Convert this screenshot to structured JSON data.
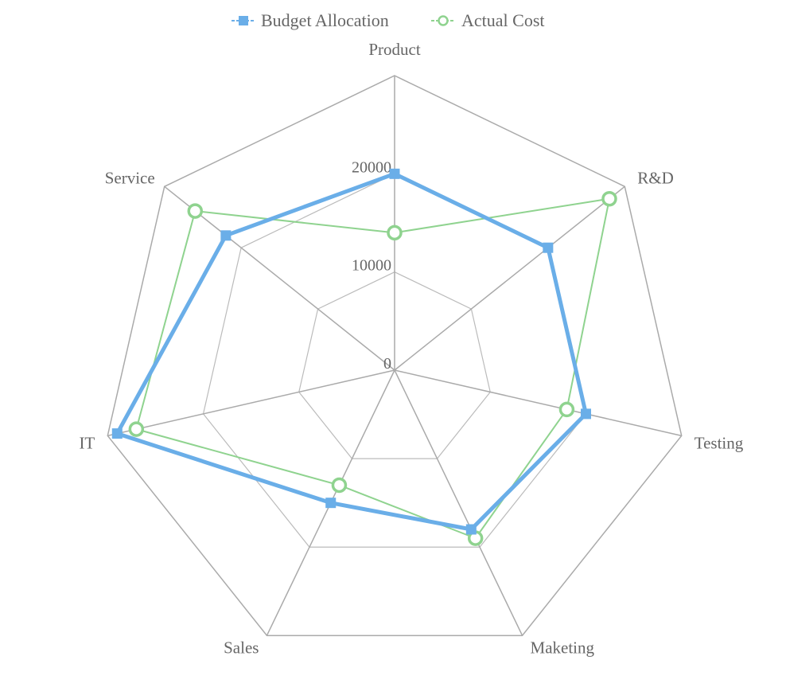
{
  "chart_data": {
    "type": "radar",
    "title": "",
    "indicators": [
      "Product",
      "R&D",
      "Testing",
      "Maketing",
      "Sales",
      "IT",
      "Service"
    ],
    "max": 30000,
    "radial_ticks": [
      "0",
      "10000",
      "20000"
    ],
    "radial_tick_values": [
      0,
      10000,
      20000
    ],
    "levels": 3,
    "legend_position": "top-center",
    "series": [
      {
        "name": "Budget Allocation",
        "color": "#6aaee8",
        "marker": "square",
        "values": [
          20000,
          20000,
          20000,
          18000,
          15000,
          29000,
          22000
        ]
      },
      {
        "name": "Actual Cost",
        "color": "#8fd38f",
        "marker": "circle",
        "values": [
          14000,
          28000,
          18000,
          19000,
          13000,
          27000,
          26000
        ]
      }
    ]
  }
}
